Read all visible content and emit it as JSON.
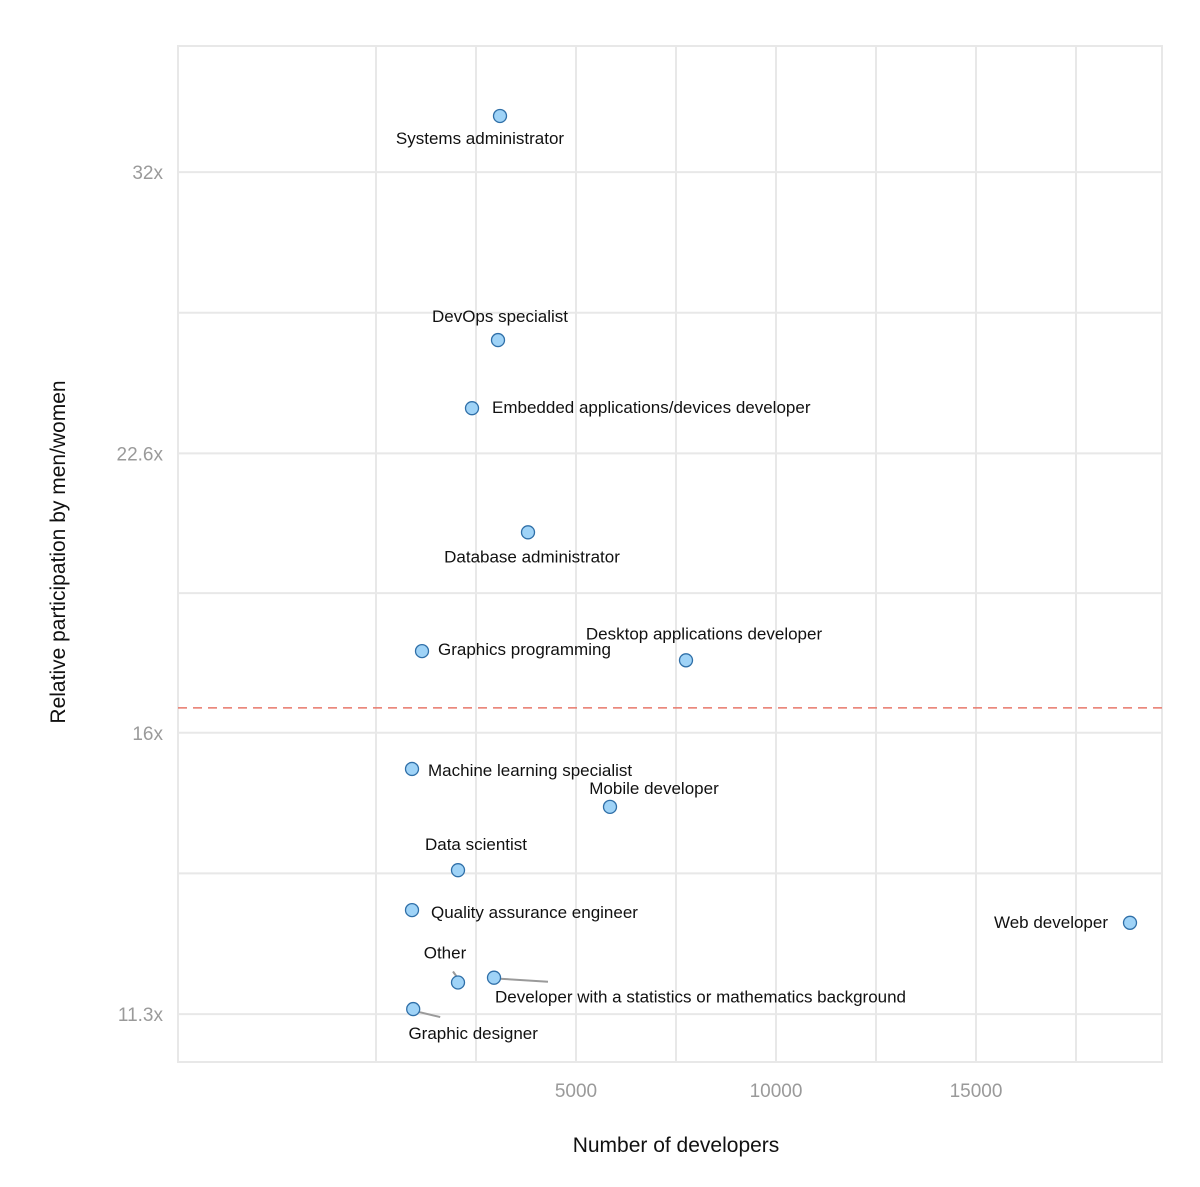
{
  "chart_data": {
    "type": "scatter",
    "title": "",
    "xlabel": "Number of developers",
    "ylabel": "Relative participation by men/women",
    "x_scale": "linear",
    "y_scale": "log",
    "xlim": [
      -4950,
      19650
    ],
    "ylim": [
      10.65,
      37.4
    ],
    "x_ticks": [
      5000,
      10000,
      15000
    ],
    "x_tick_labels": [
      "5000",
      "10000",
      "15000"
    ],
    "y_ticks": [
      11.3,
      16,
      22.6,
      32
    ],
    "y_tick_labels": [
      "11.3x",
      "16x",
      "22.6x",
      "32x"
    ],
    "grid": true,
    "reference_line": {
      "orientation": "horizontal",
      "y": 16.5,
      "style": "dashed",
      "color": "#e8786a"
    },
    "point_color": "#9fd3f7",
    "point_edge_color": "#2f6fa8",
    "points": [
      {
        "label": "Systems administrator",
        "x": 3100,
        "y": 34.3
      },
      {
        "label": "DevOps specialist",
        "x": 3050,
        "y": 26.0
      },
      {
        "label": "Embedded applications/devices developer",
        "x": 2400,
        "y": 23.9
      },
      {
        "label": "Database administrator",
        "x": 3800,
        "y": 20.5
      },
      {
        "label": "Graphics programming",
        "x": 1150,
        "y": 17.7
      },
      {
        "label": "Desktop applications developer",
        "x": 7750,
        "y": 17.5
      },
      {
        "label": "Machine learning specialist",
        "x": 900,
        "y": 15.3
      },
      {
        "label": "Mobile developer",
        "x": 5850,
        "y": 14.6
      },
      {
        "label": "Data scientist",
        "x": 2050,
        "y": 13.5
      },
      {
        "label": "Quality assurance engineer",
        "x": 900,
        "y": 12.85
      },
      {
        "label": "Web developer",
        "x": 18850,
        "y": 12.65
      },
      {
        "label": "Other",
        "x": 2050,
        "y": 11.75
      },
      {
        "label": "Developer with a statistics or mathematics background",
        "x": 2950,
        "y": 11.82
      },
      {
        "label": "Graphic designer",
        "x": 930,
        "y": 11.37
      }
    ]
  }
}
